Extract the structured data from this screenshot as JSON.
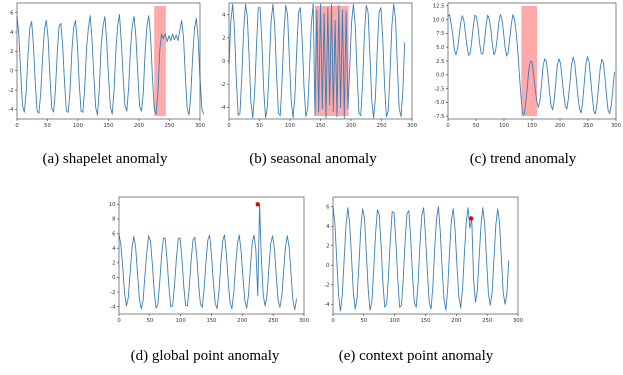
{
  "colors": {
    "line": "#3b7fb6",
    "highlight": "#ff9a9a",
    "point": "#e8000b",
    "frame": "#333333"
  },
  "chart_data": [
    {
      "type": "line",
      "caption": "(a)  shapelet anomaly",
      "xlim": [
        0,
        300
      ],
      "ylim": [
        -5,
        7
      ],
      "xticks": [
        0,
        50,
        100,
        150,
        200,
        250,
        300
      ],
      "yticks": [
        -4,
        -2,
        0,
        2,
        4,
        6
      ],
      "xticklabels": [
        "0",
        "50",
        "100",
        "150",
        "200",
        "250",
        "300"
      ],
      "yticklabels": [
        "-4",
        "-2",
        "0",
        "2",
        "4",
        "6"
      ],
      "series": [
        {
          "values": [
            5.6,
            3.7,
            -0.1,
            -3.6,
            -4.3,
            -2.3,
            1.6,
            4.4,
            5.1,
            2.6,
            -1.3,
            -4.2,
            -4.4,
            -2.2,
            1.4,
            4.3,
            5.2,
            3.4,
            -0.6,
            -3.9,
            -4.3,
            -2.0,
            1.9,
            4.6,
            4.9,
            2.4,
            -1.3,
            -4.2,
            -4.3,
            -2.0,
            2.1,
            4.5,
            5.2,
            2.7,
            -1.3,
            -4.2,
            -4.3,
            -1.8,
            2.3,
            4.4,
            5.7,
            3.2,
            -0.6,
            -3.8,
            -4.6,
            -1.8,
            2.6,
            4.6,
            5.6,
            3.1,
            -0.6,
            -3.7,
            -4.5,
            -2.2,
            2.0,
            4.6,
            5.8,
            3.0,
            -0.6,
            -3.6,
            -4.2,
            -1.8,
            2.2,
            4.7,
            5.6,
            3.4,
            -0.3,
            -3.7,
            -4.2,
            -2.3,
            1.9,
            4.6,
            5.7,
            3.5,
            -0.6,
            -4.0,
            -4.5,
            -2.3,
            2.1,
            3.8,
            3.3,
            3.8,
            3.0,
            3.6,
            3.1,
            3.8,
            3.2,
            3.7,
            3.1,
            4.2,
            5.2,
            3.4,
            -0.6,
            -3.9,
            -4.6,
            -2.4,
            1.5,
            4.4,
            5.4,
            3.3,
            -0.8,
            -3.9,
            -4.5
          ]
        }
      ],
      "x_step": 3,
      "highlights": [
        {
          "x0": 225,
          "x1": 244
        }
      ]
    },
    {
      "type": "line",
      "caption": "(b)  seasonal anomaly",
      "xlim": [
        0,
        300
      ],
      "ylim": [
        -5,
        5
      ],
      "xticks": [
        0,
        50,
        100,
        150,
        200,
        250,
        300
      ],
      "yticks": [
        -4,
        -2,
        0,
        2,
        4
      ],
      "xticklabels": [
        "0",
        "50",
        "100",
        "150",
        "200",
        "250",
        "300"
      ],
      "yticklabels": [
        "-4",
        "-2",
        "0",
        "2",
        "4"
      ],
      "series": [
        {
          "values": [
            -0.3,
            3.4,
            4.9,
            2.7,
            -1.6,
            -4.7,
            -4.5,
            -1.3,
            2.6,
            4.9,
            3.8,
            0.3,
            -3.6,
            -4.9,
            -2.8,
            1.2,
            4.6,
            4.6,
            1.5,
            -2.6,
            -4.9,
            -3.9,
            -0.4,
            3.4,
            4.9,
            3.0,
            -1.2,
            -4.5,
            -4.7,
            -1.7,
            2.4,
            4.8,
            4.0,
            0.1,
            -3.4,
            -4.9,
            -3.1,
            0.9,
            4.2,
            4.6,
            1.8,
            -2.3,
            -4.8,
            -4.1,
            -0.7,
            3.2,
            4.9,
            -4.7,
            4.4,
            -4.4,
            4.9,
            -4.1,
            4.1,
            -4.9,
            4.6,
            -3.8,
            4.9,
            -4.4,
            3.5,
            -4.8,
            4.8,
            -4.0,
            4.4,
            -4.9,
            4.3,
            -4.1,
            -0.5,
            3.4,
            4.9,
            3.0,
            -1.1,
            -4.5,
            -4.7,
            -1.9,
            2.3,
            4.8,
            4.2,
            0.5,
            -3.4,
            -4.9,
            -3.2,
            0.9,
            4.2,
            4.6,
            2.0,
            -2.1,
            -4.8,
            -4.3,
            -1.0,
            3.0,
            4.9,
            3.6,
            -0.4,
            -4.1,
            -4.8,
            -2.6,
            1.6
          ]
        }
      ],
      "x_step": 3,
      "highlights": [
        {
          "x0": 141,
          "x1": 196
        }
      ]
    },
    {
      "type": "line",
      "caption": "(c)  trend anomaly",
      "xlim": [
        0,
        300
      ],
      "ylim": [
        -8,
        13
      ],
      "xticks": [
        0,
        50,
        100,
        150,
        200,
        250,
        300
      ],
      "yticks": [
        -7.5,
        -5.0,
        -2.5,
        0.0,
        2.5,
        5.0,
        7.5,
        10.0,
        12.5
      ],
      "xticklabels": [
        "0",
        "50",
        "100",
        "150",
        "200",
        "250",
        "300"
      ],
      "yticklabels": [
        "-7.5",
        "-5.0",
        "-2.5",
        "0.0",
        "2.5",
        "5.0",
        "7.5",
        "10.0",
        "12.5"
      ],
      "series": [
        {
          "values": [
            10.6,
            10.9,
            9.2,
            7.3,
            4.6,
            3.6,
            4.7,
            7.0,
            9.4,
            10.7,
            9.9,
            7.5,
            5.2,
            3.5,
            3.9,
            6.2,
            8.9,
            10.8,
            10.5,
            8.5,
            5.6,
            3.8,
            3.8,
            6.1,
            8.9,
            10.8,
            10.1,
            8.3,
            5.5,
            3.6,
            4.3,
            6.5,
            9.3,
            10.9,
            10.2,
            7.8,
            5.0,
            3.4,
            4.1,
            6.7,
            9.3,
            10.9,
            10.0,
            7.6,
            4.5,
            0.2,
            -3.7,
            -6.9,
            -7.2,
            -5.4,
            -2.4,
            0.9,
            2.5,
            2.4,
            0.1,
            -2.5,
            -4.8,
            -5.9,
            -4.7,
            -1.8,
            1.6,
            2.9,
            2.4,
            0.2,
            -3.0,
            -5.5,
            -6.3,
            -4.6,
            -1.5,
            1.7,
            2.9,
            2.1,
            -0.7,
            -3.4,
            -5.7,
            -6.2,
            -4.2,
            -1.2,
            1.9,
            3.2,
            2.0,
            -0.9,
            -3.9,
            -6.2,
            -6.9,
            -4.8,
            -1.4,
            1.9,
            3.3,
            2.4,
            -0.7,
            -3.9,
            -6.6,
            -7.1,
            -5.3,
            -2.1,
            1.1,
            2.8,
            2.3,
            -0.4,
            -3.6,
            -6.4,
            -7.0,
            -5.6,
            -2.7,
            0.5
          ]
        }
      ],
      "x_step": 2.83,
      "highlights": [
        {
          "x0": 131,
          "x1": 159
        }
      ]
    },
    {
      "type": "line",
      "caption": "(d)  global point anomaly",
      "xlim": [
        0,
        300
      ],
      "ylim": [
        -5,
        11
      ],
      "xticks": [
        0,
        50,
        100,
        150,
        200,
        250,
        300
      ],
      "yticks": [
        -4,
        -2,
        0,
        2,
        4,
        6,
        8,
        10
      ],
      "xticklabels": [
        "0",
        "50",
        "100",
        "150",
        "200",
        "250",
        "300"
      ],
      "yticklabels": [
        "-4",
        "-2",
        "0",
        "2",
        "4",
        "6",
        "8",
        "10"
      ],
      "series": [
        {
          "values": [
            5.9,
            4.5,
            1.5,
            -2.1,
            -3.9,
            -2.8,
            0.6,
            3.9,
            5.6,
            4.1,
            0.6,
            -2.9,
            -4.3,
            -3.2,
            0.2,
            3.4,
            5.7,
            5.0,
            1.9,
            -1.8,
            -4.2,
            -3.7,
            -0.7,
            2.9,
            5.4,
            5.3,
            2.3,
            -1.4,
            -4.0,
            -3.9,
            -1.1,
            2.5,
            5.3,
            5.4,
            2.7,
            -1.2,
            -3.8,
            -3.9,
            -1.3,
            2.4,
            5.1,
            5.5,
            3.0,
            -0.8,
            -3.6,
            -4.1,
            -1.6,
            2.1,
            5.1,
            5.8,
            3.0,
            -0.6,
            -3.5,
            -4.3,
            -2.0,
            1.8,
            4.9,
            5.8,
            3.4,
            -0.4,
            -3.4,
            -4.3,
            -2.2,
            1.5,
            4.6,
            5.8,
            3.6,
            0.0,
            -3.1,
            -4.2,
            -2.4,
            1.3,
            4.7,
            5.8,
            3.7,
            -2.5,
            10.0,
            2.3,
            -2.5,
            -3.9,
            -2.5,
            1.2,
            4.6,
            5.7,
            3.9,
            0.3,
            -3.1,
            -4.1,
            -2.6,
            0.9,
            4.2,
            5.7,
            4.1,
            0.5,
            -3.1,
            -4.4,
            -2.9
          ]
        }
      ],
      "x_step": 3,
      "points": [
        {
          "x": 225,
          "y": 10.0
        }
      ]
    },
    {
      "type": "line",
      "caption": "(e)  context point anomaly",
      "xlim": [
        0,
        300
      ],
      "ylim": [
        -5,
        7
      ],
      "xticks": [
        0,
        50,
        100,
        150,
        200,
        250,
        300
      ],
      "yticks": [
        -4,
        -2,
        0,
        2,
        4,
        6
      ],
      "xticklabels": [
        "0",
        "50",
        "100",
        "150",
        "200",
        "250",
        "300"
      ],
      "yticklabels": [
        "-4",
        "-2",
        "0",
        "2",
        "4",
        "6"
      ],
      "series": [
        {
          "values": [
            6.0,
            4.3,
            0.7,
            -3.0,
            -4.7,
            -3.1,
            0.5,
            4.0,
            5.9,
            4.3,
            0.9,
            -2.8,
            -4.5,
            -3.4,
            0.0,
            3.7,
            5.8,
            4.9,
            1.3,
            -2.4,
            -4.6,
            -3.8,
            -0.5,
            3.2,
            5.7,
            5.2,
            2.0,
            -1.9,
            -4.3,
            -4.0,
            -1.0,
            2.7,
            5.5,
            5.4,
            2.4,
            -1.4,
            -4.3,
            -4.1,
            -1.3,
            2.6,
            5.3,
            5.6,
            2.7,
            -1.1,
            -3.9,
            -4.3,
            -1.8,
            2.1,
            5.1,
            5.9,
            3.0,
            -0.6,
            -3.8,
            -4.5,
            -2.1,
            1.8,
            4.8,
            6.0,
            3.4,
            -0.4,
            -3.5,
            -4.6,
            -2.4,
            1.4,
            4.6,
            5.8,
            3.6,
            0.0,
            -3.2,
            -4.4,
            -2.5,
            1.1,
            4.4,
            5.9,
            3.8,
            4.8,
            -1.5,
            -3.8,
            -2.6,
            0.8,
            4.1,
            5.9,
            4.2,
            0.6,
            -2.9,
            -4.1,
            -2.8,
            0.6,
            4.1,
            5.8,
            4.4,
            0.8,
            -2.8,
            -4.0,
            -2.9,
            0.5
          ]
        }
      ],
      "x_step": 3,
      "points": [
        {
          "x": 224,
          "y": 4.8
        }
      ]
    }
  ]
}
